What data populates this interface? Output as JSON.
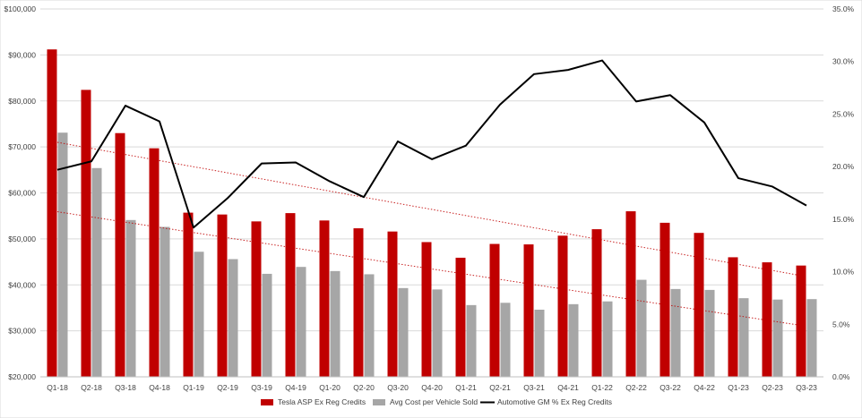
{
  "chart_data": {
    "type": "bar",
    "categories": [
      "Q1-18",
      "Q2-18",
      "Q3-18",
      "Q4-18",
      "Q1-19",
      "Q2-19",
      "Q3-19",
      "Q4-19",
      "Q1-20",
      "Q2-20",
      "Q3-20",
      "Q4-20",
      "Q1-21",
      "Q2-21",
      "Q3-21",
      "Q4-21",
      "Q1-22",
      "Q2-22",
      "Q3-22",
      "Q4-22",
      "Q1-23",
      "Q2-23",
      "Q3-23"
    ],
    "series": [
      {
        "name": "Tesla ASP Ex Reg Credits",
        "type": "bar",
        "axis": "left",
        "color": "#c00000",
        "values": [
          91200,
          82400,
          73000,
          69700,
          55700,
          55300,
          53800,
          55600,
          54000,
          52300,
          51600,
          49300,
          45900,
          48900,
          48800,
          50700,
          52100,
          56000,
          53500,
          51300,
          46000,
          44900,
          44200
        ]
      },
      {
        "name": "Avg Cost per Vehicle Sold",
        "type": "bar",
        "axis": "left",
        "color": "#a6a6a6",
        "values": [
          73100,
          65400,
          54100,
          52600,
          47200,
          45600,
          42400,
          43900,
          43000,
          42300,
          39300,
          39000,
          35600,
          36100,
          34600,
          35800,
          36400,
          41100,
          39100,
          38900,
          37100,
          36800,
          36900
        ]
      },
      {
        "name": "Automotive GM % Ex Reg Credits",
        "type": "line",
        "axis": "right",
        "color": "#000000",
        "values": [
          19.7,
          20.5,
          25.8,
          24.3,
          14.2,
          17.0,
          20.3,
          20.4,
          18.6,
          17.1,
          22.4,
          20.7,
          22.0,
          25.9,
          28.8,
          29.2,
          30.1,
          26.2,
          26.8,
          24.2,
          18.9,
          18.1,
          16.3
        ]
      }
    ],
    "trendlines": [
      {
        "series": "Tesla ASP Ex Reg Credits",
        "style": "dotted",
        "color": "#c00000",
        "start": 71000,
        "end": 41800
      },
      {
        "series": "Avg Cost per Vehicle Sold",
        "style": "dotted",
        "color": "#c00000",
        "start": 55900,
        "end": 31000
      }
    ],
    "y_left": {
      "ylim": [
        20000,
        100000
      ],
      "ticks": [
        20000,
        30000,
        40000,
        50000,
        60000,
        70000,
        80000,
        90000,
        100000
      ],
      "tick_labels": [
        "$20,000",
        "$30,000",
        "$40,000",
        "$50,000",
        "$60,000",
        "$70,000",
        "$80,000",
        "$90,000",
        "$100,000"
      ]
    },
    "y_right": {
      "ylim": [
        0,
        35
      ],
      "ticks": [
        0,
        5,
        10,
        15,
        20,
        25,
        30,
        35
      ],
      "tick_labels": [
        "0.0%",
        "5.0%",
        "10.0%",
        "15.0%",
        "20.0%",
        "25.0%",
        "30.0%",
        "35.0%"
      ]
    },
    "grid": true,
    "legend_position": "bottom-center",
    "title": "",
    "xlabel": "",
    "ylabel": ""
  }
}
